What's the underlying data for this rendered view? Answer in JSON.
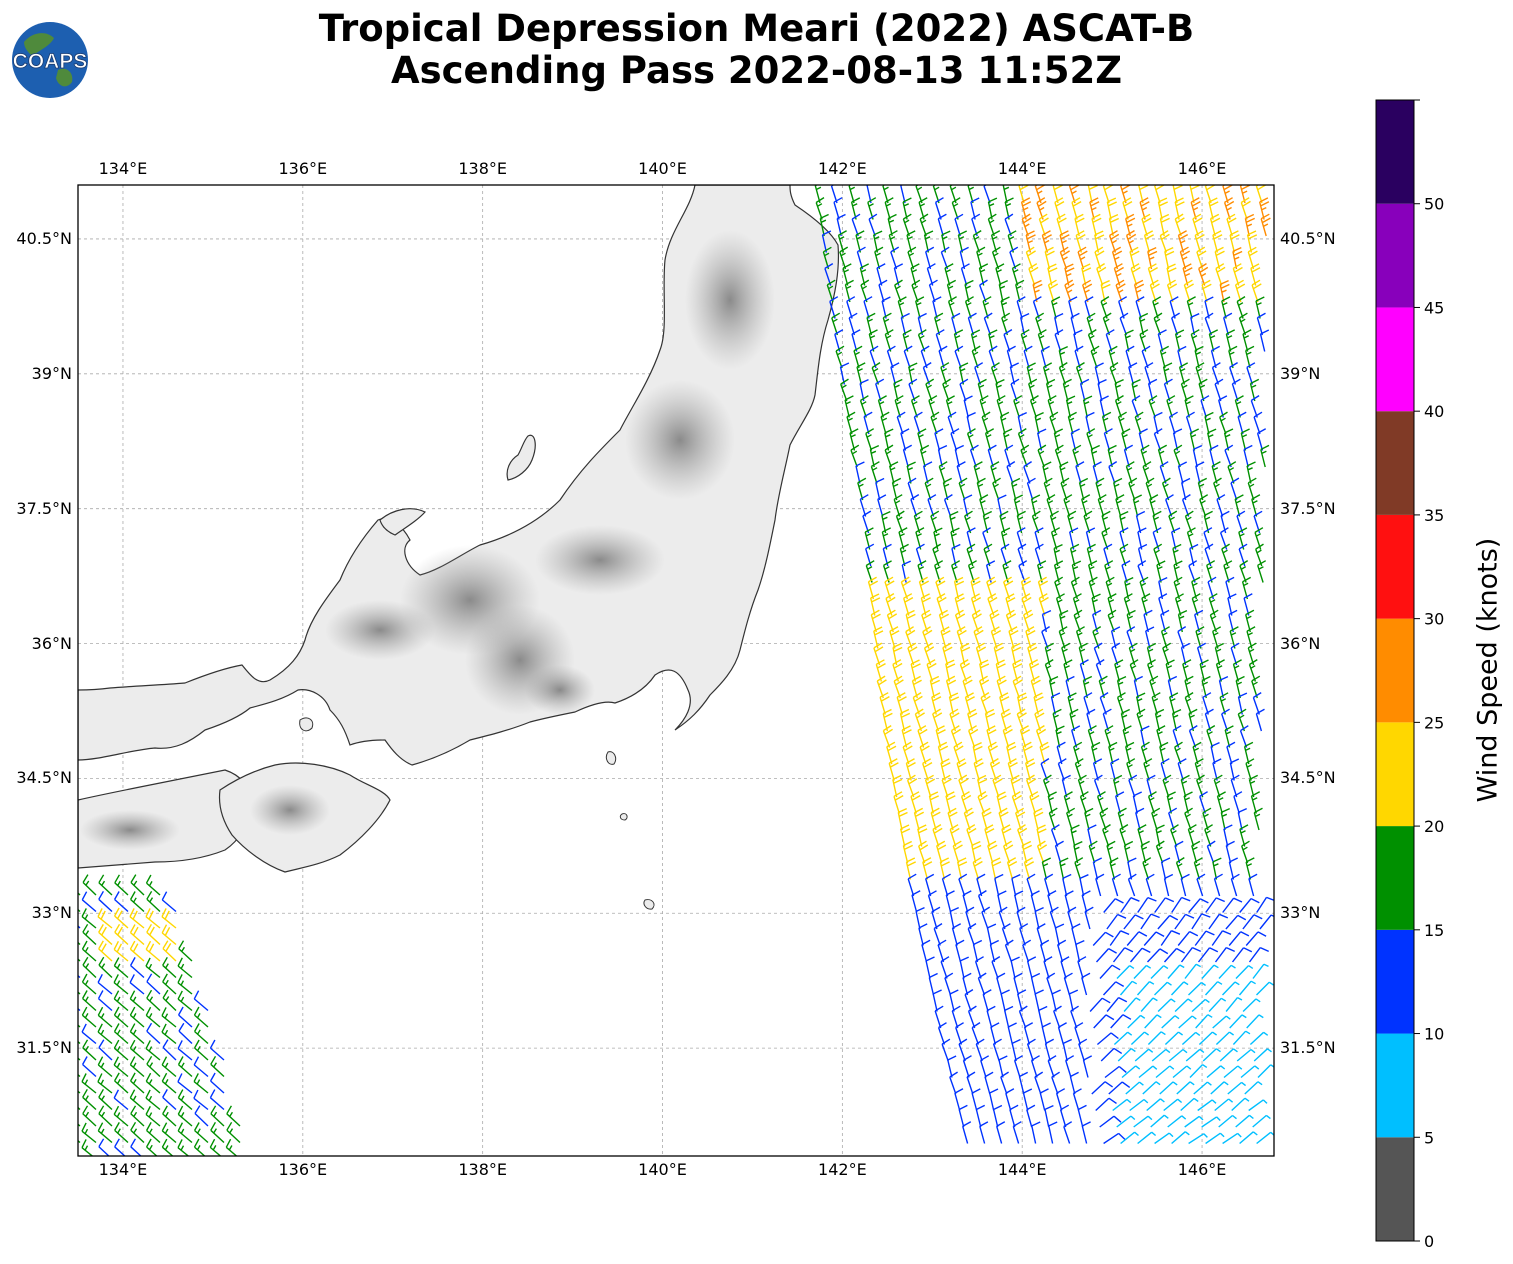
{
  "title": {
    "line1": "Tropical Depression Meari (2022) ASCAT-B",
    "line2": "Ascending Pass 2022-08-13 11:52Z"
  },
  "logo": {
    "text": "COAPS",
    "icon": "globe-logo-icon"
  },
  "map": {
    "lon_range": [
      133.5,
      146.8
    ],
    "lat_range": [
      30.3,
      41.1
    ],
    "lon_ticks": [
      "134°E",
      "136°E",
      "138°E",
      "140°E",
      "142°E",
      "144°E",
      "146°E"
    ],
    "lat_ticks": [
      "40.5°N",
      "39°N",
      "37.5°N",
      "36°N",
      "34.5°N",
      "33°N",
      "31.5°N"
    ],
    "gridlines": true,
    "basemap": "grayscale terrain with coastlines"
  },
  "colorbar": {
    "label": "Wind Speed (knots)",
    "ticks": [
      "0",
      "5",
      "10",
      "15",
      "20",
      "25",
      "30",
      "35",
      "40",
      "45",
      "50"
    ],
    "bins": [
      {
        "min": 0,
        "max": 5,
        "color": "#555555"
      },
      {
        "min": 5,
        "max": 10,
        "color": "#00bfff"
      },
      {
        "min": 10,
        "max": 15,
        "color": "#0033ff"
      },
      {
        "min": 15,
        "max": 20,
        "color": "#009000"
      },
      {
        "min": 20,
        "max": 25,
        "color": "#ffd700"
      },
      {
        "min": 25,
        "max": 30,
        "color": "#ff8c00"
      },
      {
        "min": 30,
        "max": 35,
        "color": "#ff1010"
      },
      {
        "min": 35,
        "max": 40,
        "color": "#803a26"
      },
      {
        "min": 40,
        "max": 45,
        "color": "#ff00ff"
      },
      {
        "min": 45,
        "max": 50,
        "color": "#8800bb"
      },
      {
        "min": 50,
        "max": 55,
        "color": "#2a0060"
      }
    ]
  }
}
